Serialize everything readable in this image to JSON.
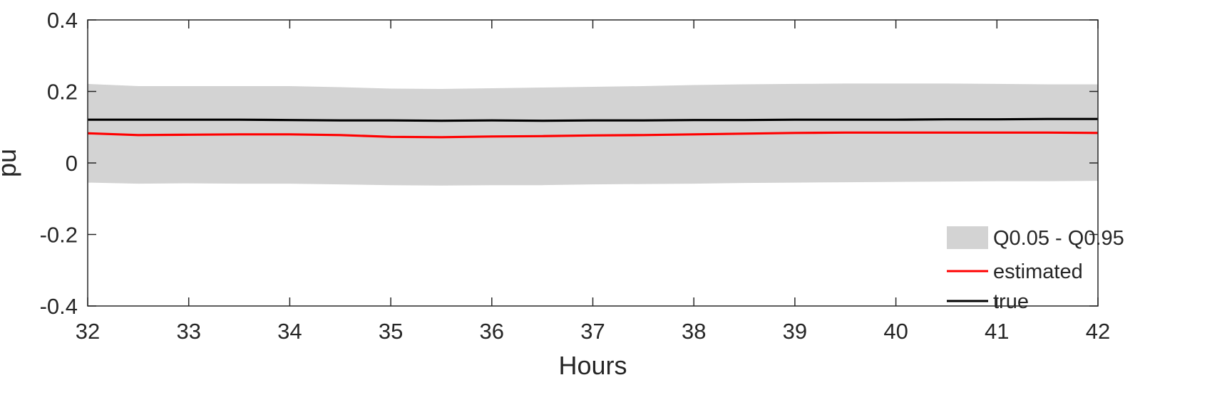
{
  "chart_data": {
    "type": "line",
    "title": "",
    "xlabel": "Hours",
    "ylabel": "pu",
    "xlim": [
      32,
      42
    ],
    "ylim": [
      -0.4,
      0.4
    ],
    "x_ticks": [
      32,
      33,
      34,
      35,
      36,
      37,
      38,
      39,
      40,
      41,
      42
    ],
    "x_tick_labels": [
      "32",
      "33",
      "34",
      "35",
      "36",
      "37",
      "38",
      "39",
      "40",
      "41",
      "42"
    ],
    "y_ticks": [
      -0.4,
      -0.2,
      0,
      0.2,
      0.4
    ],
    "y_tick_labels": [
      "-0.4",
      "-0.2",
      "0",
      "0.2",
      "0.4"
    ],
    "grid": false,
    "legend_position": "bottom-right",
    "x": [
      32,
      32.5,
      33,
      33.5,
      34,
      34.5,
      35,
      35.5,
      36,
      36.5,
      37,
      37.5,
      38,
      38.5,
      39,
      39.5,
      40,
      40.5,
      41,
      41.5,
      42
    ],
    "band": {
      "name": "Q0.05 - Q0.95",
      "color": "#d3d3d3",
      "lower": [
        -0.055,
        -0.058,
        -0.057,
        -0.058,
        -0.058,
        -0.06,
        -0.062,
        -0.063,
        -0.062,
        -0.062,
        -0.06,
        -0.059,
        -0.058,
        -0.056,
        -0.055,
        -0.054,
        -0.053,
        -0.052,
        -0.051,
        -0.051,
        -0.05
      ],
      "upper": [
        0.221,
        0.215,
        0.215,
        0.215,
        0.215,
        0.212,
        0.208,
        0.207,
        0.209,
        0.211,
        0.213,
        0.215,
        0.218,
        0.22,
        0.221,
        0.222,
        0.222,
        0.222,
        0.221,
        0.22,
        0.22
      ]
    },
    "series": [
      {
        "name": "estimated",
        "color": "#ff0000",
        "values": [
          0.083,
          0.078,
          0.079,
          0.08,
          0.08,
          0.078,
          0.073,
          0.072,
          0.074,
          0.075,
          0.077,
          0.078,
          0.08,
          0.082,
          0.084,
          0.085,
          0.085,
          0.085,
          0.085,
          0.085,
          0.084
        ]
      },
      {
        "name": "true",
        "color": "#000000",
        "values": [
          0.121,
          0.121,
          0.121,
          0.121,
          0.12,
          0.119,
          0.119,
          0.118,
          0.119,
          0.118,
          0.119,
          0.119,
          0.12,
          0.12,
          0.121,
          0.121,
          0.121,
          0.122,
          0.122,
          0.123,
          0.123
        ]
      }
    ]
  }
}
